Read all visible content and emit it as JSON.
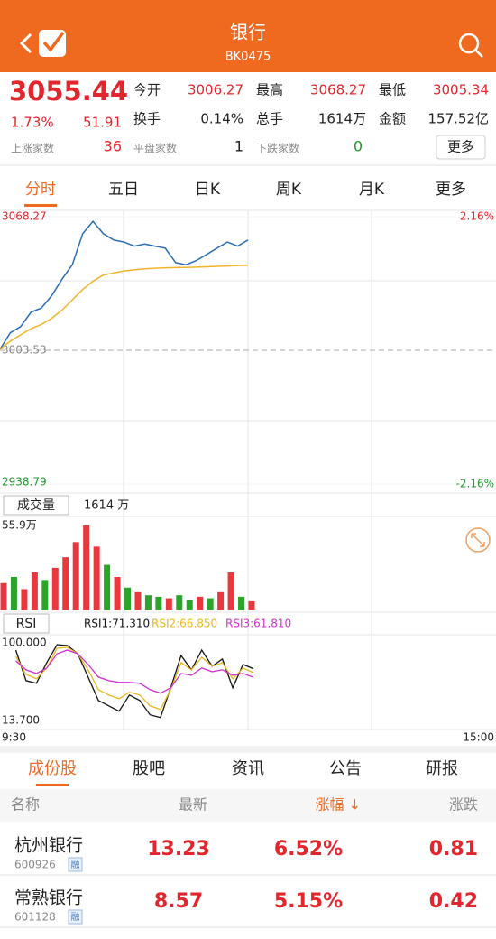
{
  "header": {
    "title": "银行",
    "code": "BK0475"
  },
  "quote": {
    "price": "3055.44",
    "change_pct": "1.73%",
    "change": "51.91",
    "fields": [
      {
        "label": "今开",
        "value": "3006.27"
      },
      {
        "label": "最高",
        "value": "3068.27"
      },
      {
        "label": "最低",
        "value": "3005.34"
      },
      {
        "label": "换手",
        "value": "0.14%"
      },
      {
        "label": "总手",
        "value": "1614万"
      },
      {
        "label": "金额",
        "value": "157.52亿"
      }
    ],
    "breadth": [
      {
        "label": "上涨家数",
        "value": "36"
      },
      {
        "label": "平盘家数",
        "value": "1"
      },
      {
        "label": "下跌家数",
        "value": "0"
      }
    ],
    "more": "更多"
  },
  "tabs": [
    "分时",
    "五日",
    "日K",
    "周K",
    "月K",
    "更多"
  ],
  "chart_data": [
    {
      "type": "line",
      "ylim": [
        2938.79,
        3068.27
      ],
      "yticks": [
        3068.27,
        3003.53,
        2938.79
      ],
      "y2lim": [
        -2.16,
        2.16
      ],
      "y2ticks": [
        {
          "value": 2.16,
          "label": "2.16%"
        },
        {
          "value": -2.16,
          "label": "-2.16%"
        }
      ],
      "series": [
        {
          "color": "#2b6cb3",
          "values": [
            3004,
            3012,
            3015,
            3022,
            3024,
            3030,
            3038,
            3045,
            3060,
            3066,
            3060,
            3057,
            3056,
            3054,
            3055,
            3054,
            3053,
            3046,
            3045,
            3047,
            3050,
            3053,
            3056,
            3054,
            3057,
            null,
            null,
            null,
            null,
            null,
            null,
            null,
            null,
            null,
            null,
            null,
            null,
            null,
            null,
            null,
            null,
            null,
            null,
            null,
            null,
            null,
            null,
            null,
            null
          ]
        },
        {
          "color": "#f0b429",
          "values": [
            3004,
            3008,
            3011,
            3014,
            3016,
            3019,
            3023,
            3028,
            3033,
            3037,
            3040,
            3041,
            3042,
            3042.5,
            3043,
            3043.3,
            3043.5,
            3043.6,
            3043.7,
            3043.8,
            3044,
            3044.2,
            3044.4,
            3044.6,
            3044.8,
            null,
            null,
            null,
            null,
            null,
            null,
            null,
            null,
            null,
            null,
            null,
            null,
            null,
            null,
            null,
            null,
            null,
            null,
            null,
            null,
            null,
            null,
            null,
            null
          ]
        }
      ]
    },
    {
      "type": "bar",
      "title": "成交量",
      "annotation": "1614 万",
      "ylim": [
        0,
        55.9
      ],
      "yticks": [
        {
          "value": 55.9,
          "label": "55.9万"
        }
      ],
      "values": [
        18,
        22,
        14,
        25,
        20,
        28,
        35,
        45,
        55.9,
        42,
        30,
        22,
        15,
        12,
        10,
        9,
        8,
        10,
        7,
        9,
        8,
        12,
        25,
        9,
        6,
        null,
        null,
        null,
        null,
        null,
        null,
        null,
        null,
        null,
        null,
        null,
        null,
        null,
        null,
        null,
        null,
        null,
        null,
        null,
        null,
        null,
        null,
        null,
        null
      ],
      "colors": [
        "#e8383d",
        "#2aa52a",
        "#e8383d",
        "#e8383d",
        "#2aa52a",
        "#e8383d",
        "#e8383d",
        "#e8383d",
        "#e8383d",
        "#e8383d",
        "#2aa52a",
        "#e8383d",
        "#2aa52a",
        "#e8383d",
        "#2aa52a",
        "#2aa52a",
        "#e8383d",
        "#2aa52a",
        "#2aa52a",
        "#e8383d",
        "#2aa52a",
        "#e8383d",
        "#e8383d",
        "#2aa52a",
        "#e8383d",
        null,
        null,
        null,
        null,
        null,
        null,
        null,
        null,
        null,
        null,
        null,
        null,
        null,
        null,
        null,
        null,
        null,
        null,
        null,
        null,
        null,
        null,
        null,
        null
      ]
    },
    {
      "type": "line",
      "title": "RSI",
      "ylim": [
        13.7,
        100
      ],
      "yticks": [
        {
          "value": 100,
          "label": "100.000"
        },
        {
          "value": 13.7,
          "label": "13.700"
        }
      ],
      "x_labels": [
        "9:30",
        "15:00"
      ],
      "series": [
        {
          "name": "RSI1:71.310",
          "color": "#111111",
          "values": [
            null,
            92,
            58,
            55,
            78,
            98,
            97,
            88,
            62,
            36,
            30,
            24,
            42,
            36,
            20,
            17,
            50,
            86,
            70,
            92,
            74,
            82,
            50,
            76,
            71.31,
            null,
            null,
            null,
            null,
            null,
            null,
            null,
            null,
            null,
            null,
            null,
            null,
            null,
            null,
            null,
            null,
            null,
            null,
            null,
            null,
            null,
            null,
            null,
            null
          ]
        },
        {
          "name": "RSI2:66.850",
          "color": "#e8b820",
          "values": [
            null,
            85,
            65,
            60,
            72,
            94,
            95,
            88,
            70,
            48,
            42,
            38,
            45,
            42,
            30,
            26,
            48,
            78,
            70,
            84,
            74,
            78,
            60,
            72,
            66.85,
            null,
            null,
            null,
            null,
            null,
            null,
            null,
            null,
            null,
            null,
            null,
            null,
            null,
            null,
            null,
            null,
            null,
            null,
            null,
            null,
            null,
            null,
            null,
            null
          ]
        },
        {
          "name": "RSI3:61.810",
          "color": "#d030d0",
          "values": [
            null,
            80,
            70,
            66,
            72,
            88,
            92,
            88,
            76,
            62,
            58,
            56,
            56,
            55,
            48,
            44,
            50,
            66,
            64,
            72,
            68,
            70,
            64,
            66,
            61.81,
            null,
            null,
            null,
            null,
            null,
            null,
            null,
            null,
            null,
            null,
            null,
            null,
            null,
            null,
            null,
            null,
            null,
            null,
            null,
            null,
            null,
            null,
            null,
            null
          ]
        }
      ]
    }
  ],
  "list_tabs": [
    "成份股",
    "股吧",
    "资讯",
    "公告",
    "研报"
  ],
  "table": {
    "columns": [
      "名称",
      "最新",
      "涨幅 ↓",
      "涨跌"
    ],
    "rows": [
      {
        "name": "杭州银行",
        "code": "600926",
        "tag": "融",
        "last": "13.23",
        "pct": "6.52%",
        "chg": "0.81"
      },
      {
        "name": "常熟银行",
        "code": "601128",
        "tag": "融",
        "last": "8.57",
        "pct": "5.15%",
        "chg": "0.42"
      }
    ]
  }
}
